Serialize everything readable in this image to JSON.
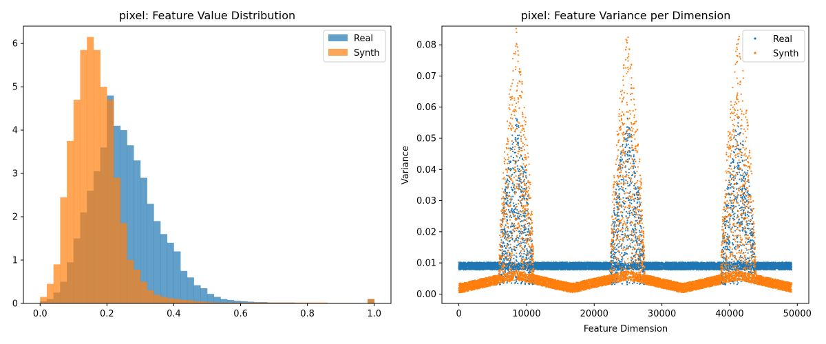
{
  "colors": {
    "real": "#1f77b4",
    "synth": "#ff7f0e"
  },
  "chart_data": [
    {
      "type": "bar",
      "subtype": "histogram",
      "title": "pixel: Feature Value Distribution",
      "xlabel": "",
      "ylabel": "",
      "xlim": [
        -0.05,
        1.05
      ],
      "ylim": [
        0,
        6.4
      ],
      "xticks": [
        0.0,
        0.2,
        0.4,
        0.6,
        0.8,
        1.0
      ],
      "xtick_labels": [
        "0.0",
        "0.2",
        "0.4",
        "0.6",
        "0.8",
        "1.0"
      ],
      "yticks": [
        0,
        1,
        2,
        3,
        4,
        5,
        6
      ],
      "ytick_labels": [
        "0",
        "1",
        "2",
        "3",
        "4",
        "5",
        "6"
      ],
      "legend": {
        "position": "top-right",
        "entries": [
          "Real",
          "Synth"
        ]
      },
      "bin_width": 0.02,
      "bins_start": [
        0.0,
        0.02,
        0.04,
        0.06,
        0.08,
        0.1,
        0.12,
        0.14,
        0.16,
        0.18,
        0.2,
        0.22,
        0.24,
        0.26,
        0.28,
        0.3,
        0.32,
        0.34,
        0.36,
        0.38,
        0.4,
        0.42,
        0.44,
        0.46,
        0.48,
        0.5,
        0.52,
        0.54,
        0.56,
        0.58,
        0.6,
        0.62,
        0.64,
        0.66,
        0.68,
        0.7,
        0.72,
        0.74,
        0.76,
        0.78,
        0.8,
        0.82,
        0.84,
        0.86,
        0.88,
        0.9,
        0.92,
        0.94,
        0.96,
        0.98
      ],
      "series": [
        {
          "name": "Real",
          "values": [
            0.05,
            0.1,
            0.25,
            0.5,
            0.95,
            1.5,
            2.1,
            2.6,
            3.05,
            3.6,
            4.8,
            4.1,
            4.0,
            3.65,
            3.3,
            2.9,
            2.3,
            1.9,
            1.6,
            1.4,
            1.2,
            0.75,
            0.6,
            0.42,
            0.35,
            0.22,
            0.15,
            0.1,
            0.08,
            0.06,
            0.05,
            0.04,
            0.03,
            0.03,
            0.02,
            0.02,
            0.02,
            0.02,
            0.01,
            0.01,
            0.01,
            0.01,
            0.01,
            0.0,
            0.0,
            0.0,
            0.0,
            0.0,
            0.0,
            0.1
          ]
        },
        {
          "name": "Synth",
          "values": [
            0.15,
            0.45,
            0.9,
            2.45,
            3.75,
            4.7,
            5.85,
            6.15,
            5.85,
            5.0,
            4.7,
            2.9,
            1.85,
            1.0,
            0.78,
            0.5,
            0.3,
            0.2,
            0.15,
            0.12,
            0.1,
            0.08,
            0.07,
            0.05,
            0.04,
            0.03,
            0.02,
            0.02,
            0.02,
            0.02,
            0.02,
            0.02,
            0.02,
            0.02,
            0.02,
            0.02,
            0.02,
            0.02,
            0.02,
            0.02,
            0.02,
            0.02,
            0.02,
            0.01,
            0.01,
            0.01,
            0.01,
            0.01,
            0.0,
            0.1
          ]
        }
      ]
    },
    {
      "type": "scatter",
      "title": "pixel: Feature Variance per Dimension",
      "xlabel": "Feature Dimension",
      "ylabel": "Variance",
      "xlim": [
        -2500,
        51700
      ],
      "ylim": [
        -0.003,
        0.086
      ],
      "xticks": [
        0,
        10000,
        20000,
        30000,
        40000,
        50000
      ],
      "xtick_labels": [
        "0",
        "10000",
        "20000",
        "30000",
        "40000",
        "50000"
      ],
      "yticks": [
        0.0,
        0.01,
        0.02,
        0.03,
        0.04,
        0.05,
        0.06,
        0.07,
        0.08
      ],
      "ytick_labels": [
        "0.00",
        "0.01",
        "0.02",
        "0.03",
        "0.04",
        "0.05",
        "0.06",
        "0.07",
        "0.08"
      ],
      "legend": {
        "position": "top-right",
        "entries": [
          "Real",
          "Synth"
        ]
      },
      "x_range": [
        0,
        49152
      ],
      "series": [
        {
          "name": "Real",
          "baseline_variance": 0.009,
          "baseline_spread": 0.0012,
          "peak_centers": [
            8500,
            24900,
            41300
          ],
          "peak_halfwidth": 2500,
          "peak_max_variance": 0.055
        },
        {
          "name": "Synth",
          "baseline_variance_range": [
            0.002,
            0.006
          ],
          "peak_centers": [
            8500,
            24900,
            41300
          ],
          "peak_halfwidth": 2600,
          "peak_max_variance": 0.082
        }
      ]
    }
  ]
}
